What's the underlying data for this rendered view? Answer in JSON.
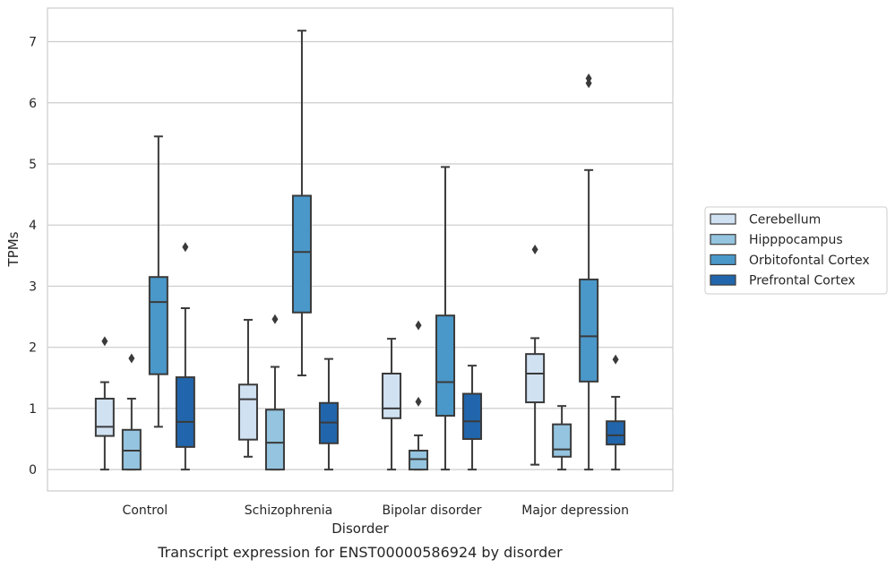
{
  "chart_data": {
    "type": "box",
    "title": "",
    "caption": "Transcript expression for ENST00000586924 by disorder",
    "xlabel": "Disorder",
    "ylabel": "TPMs",
    "ylim": [
      -0.35,
      7.55
    ],
    "yticks": [
      "0",
      "1",
      "2",
      "3",
      "4",
      "5",
      "6",
      "7"
    ],
    "grid": "horizontal",
    "legend_placement": "right",
    "categories": [
      "Control",
      "Schizophrenia",
      "Bipolar disorder",
      "Major depression"
    ],
    "series": [
      {
        "name": "Cerebellum",
        "color": "#d0e1f2",
        "boxes": [
          {
            "whisker_low": 0.0,
            "q1": 0.55,
            "median": 0.7,
            "q3": 1.16,
            "whisker_high": 1.43,
            "outliers": [
              2.1
            ]
          },
          {
            "whisker_low": 0.21,
            "q1": 0.49,
            "median": 1.15,
            "q3": 1.39,
            "whisker_high": 2.45,
            "outliers": []
          },
          {
            "whisker_low": 0.0,
            "q1": 0.84,
            "median": 1.0,
            "q3": 1.57,
            "whisker_high": 2.14,
            "outliers": []
          },
          {
            "whisker_low": 0.08,
            "q1": 1.1,
            "median": 1.57,
            "q3": 1.89,
            "whisker_high": 2.15,
            "outliers": [
              3.6
            ]
          }
        ]
      },
      {
        "name": "Hipppocampus",
        "color": "#94c4df",
        "boxes": [
          {
            "whisker_low": 0.0,
            "q1": 0.0,
            "median": 0.31,
            "q3": 0.65,
            "whisker_high": 1.16,
            "outliers": [
              1.82
            ]
          },
          {
            "whisker_low": 0.0,
            "q1": 0.0,
            "median": 0.44,
            "q3": 0.98,
            "whisker_high": 1.68,
            "outliers": [
              2.46
            ]
          },
          {
            "whisker_low": 0.0,
            "q1": 0.0,
            "median": 0.17,
            "q3": 0.31,
            "whisker_high": 0.56,
            "outliers": [
              2.36,
              1.11
            ]
          },
          {
            "whisker_low": 0.0,
            "q1": 0.21,
            "median": 0.33,
            "q3": 0.74,
            "whisker_high": 1.04,
            "outliers": []
          }
        ]
      },
      {
        "name": "Orbitofontal Cortex",
        "color": "#4a98c9",
        "boxes": [
          {
            "whisker_low": 0.7,
            "q1": 1.56,
            "median": 2.74,
            "q3": 3.15,
            "whisker_high": 5.45,
            "outliers": []
          },
          {
            "whisker_low": 1.54,
            "q1": 2.57,
            "median": 3.56,
            "q3": 4.48,
            "whisker_high": 7.18,
            "outliers": []
          },
          {
            "whisker_low": 0.0,
            "q1": 0.88,
            "median": 1.43,
            "q3": 2.52,
            "whisker_high": 4.95,
            "outliers": []
          },
          {
            "whisker_low": 0.0,
            "q1": 1.44,
            "median": 2.18,
            "q3": 3.11,
            "whisker_high": 4.9,
            "outliers": [
              6.4,
              6.32
            ]
          }
        ]
      },
      {
        "name": "Prefrontal Cortex",
        "color": "#2166ac",
        "boxes": [
          {
            "whisker_low": 0.0,
            "q1": 0.37,
            "median": 0.78,
            "q3": 1.51,
            "whisker_high": 2.64,
            "outliers": [
              3.64
            ]
          },
          {
            "whisker_low": 0.0,
            "q1": 0.43,
            "median": 0.77,
            "q3": 1.09,
            "whisker_high": 1.81,
            "outliers": []
          },
          {
            "whisker_low": 0.0,
            "q1": 0.5,
            "median": 0.79,
            "q3": 1.24,
            "whisker_high": 1.7,
            "outliers": []
          },
          {
            "whisker_low": 0.0,
            "q1": 0.41,
            "median": 0.56,
            "q3": 0.79,
            "whisker_high": 1.19,
            "outliers": [
              1.8
            ]
          }
        ]
      }
    ]
  }
}
